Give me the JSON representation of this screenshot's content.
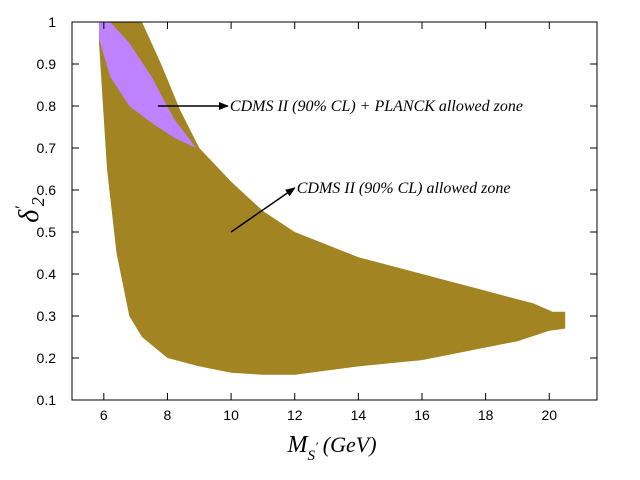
{
  "chart_data": {
    "type": "area",
    "title": "",
    "xlabel": {
      "symbol": "M",
      "subscript": "S",
      "prime": "′",
      "unit": "(GeV)"
    },
    "ylabel": {
      "symbol": "δ",
      "prime": "′",
      "subscript": "2"
    },
    "xlim": [
      5,
      21.5
    ],
    "ylim": [
      0.1,
      1.0
    ],
    "xticks": [
      6,
      8,
      10,
      12,
      14,
      16,
      18,
      20
    ],
    "yticks": [
      0.1,
      0.2,
      0.3,
      0.4,
      0.5,
      0.6,
      0.7,
      0.8,
      0.9,
      1.0
    ],
    "ytick_labels": [
      "0.1",
      "0.2",
      "0.3",
      "0.4",
      "0.5",
      "0.6",
      "0.7",
      "0.8",
      "0.9",
      "1"
    ],
    "grid": false,
    "series": [
      {
        "name": "CDMS II (90% CL) allowed zone",
        "color": "#a28423",
        "upper": [
          [
            5.85,
            1.0
          ],
          [
            7.2,
            1.0
          ],
          [
            7.8,
            0.9
          ],
          [
            8.4,
            0.79
          ],
          [
            9.0,
            0.7
          ],
          [
            10.0,
            0.62
          ],
          [
            11.0,
            0.55
          ],
          [
            12.0,
            0.5
          ],
          [
            14.0,
            0.44
          ],
          [
            16.0,
            0.4
          ],
          [
            18.0,
            0.36
          ],
          [
            19.5,
            0.33
          ],
          [
            20.1,
            0.31
          ],
          [
            20.5,
            0.31
          ]
        ],
        "lower": [
          [
            20.5,
            0.27
          ],
          [
            20.0,
            0.265
          ],
          [
            19.0,
            0.24
          ],
          [
            18.0,
            0.225
          ],
          [
            16.0,
            0.195
          ],
          [
            14.0,
            0.18
          ],
          [
            12.0,
            0.16
          ],
          [
            11.0,
            0.16
          ],
          [
            10.0,
            0.165
          ],
          [
            9.0,
            0.18
          ],
          [
            8.0,
            0.2
          ],
          [
            7.2,
            0.25
          ],
          [
            6.8,
            0.3
          ],
          [
            6.4,
            0.45
          ],
          [
            6.1,
            0.65
          ],
          [
            5.85,
            0.95
          ]
        ]
      },
      {
        "name": "CDMS II (90% CL) + PLANCK allowed zone",
        "color": "#bf82ff",
        "upper": [
          [
            5.85,
            1.0
          ],
          [
            6.2,
            1.0
          ],
          [
            6.8,
            0.95
          ],
          [
            7.5,
            0.87
          ],
          [
            8.2,
            0.77
          ],
          [
            8.9,
            0.7
          ]
        ],
        "lower": [
          [
            8.9,
            0.7
          ],
          [
            8.2,
            0.725
          ],
          [
            7.5,
            0.76
          ],
          [
            6.8,
            0.8
          ],
          [
            6.2,
            0.87
          ],
          [
            5.85,
            0.96
          ]
        ]
      }
    ],
    "annotations": [
      {
        "text": "CDMS II (90% CL) + PLANCK allowed zone",
        "arrow_from": [
          7.7,
          0.8
        ],
        "arrow_to": [
          9.9,
          0.8
        ]
      },
      {
        "text": "CDMS II (90% CL) allowed zone",
        "arrow_from": [
          10.0,
          0.5
        ],
        "arrow_to": [
          12.0,
          0.605
        ]
      }
    ]
  }
}
